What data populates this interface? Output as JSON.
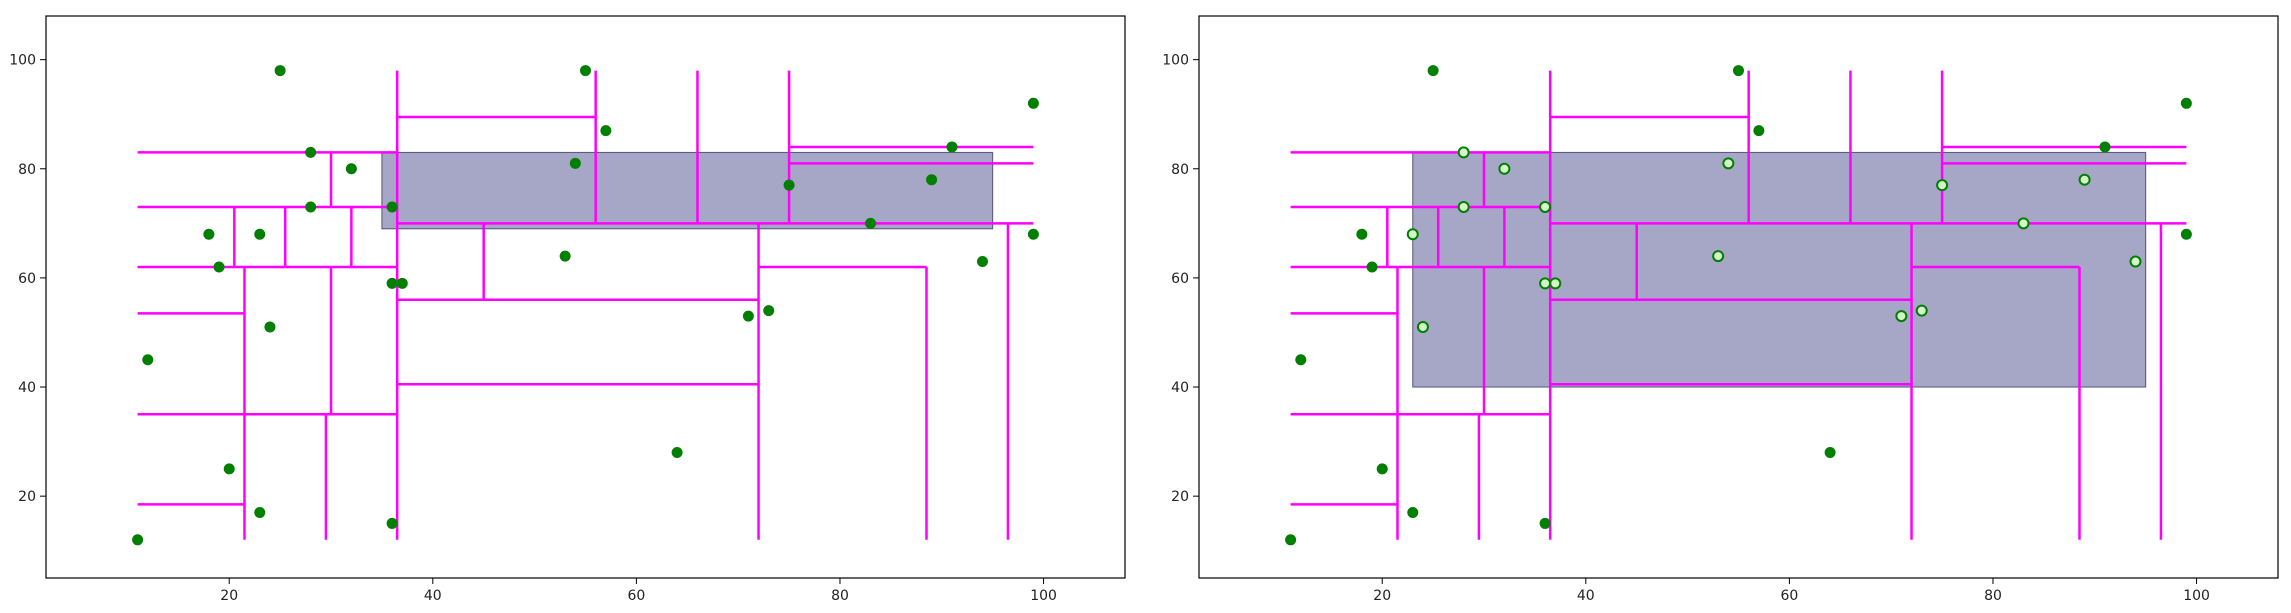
{
  "chart_data": [
    {
      "type": "scatter",
      "title": "",
      "xlabel": "",
      "ylabel": "",
      "xlim": [
        2,
        108
      ],
      "ylim": [
        5,
        108
      ],
      "xticks": [
        20,
        40,
        60,
        80,
        100
      ],
      "yticks": [
        20,
        40,
        60,
        80,
        100
      ],
      "grid": false,
      "points": [
        [
          11,
          12
        ],
        [
          12,
          45
        ],
        [
          18,
          68
        ],
        [
          19,
          62
        ],
        [
          20,
          25
        ],
        [
          23,
          17
        ],
        [
          23,
          68
        ],
        [
          24,
          51
        ],
        [
          25,
          98
        ],
        [
          28,
          83
        ],
        [
          28,
          73
        ],
        [
          32,
          80
        ],
        [
          36,
          73
        ],
        [
          36,
          59
        ],
        [
          37,
          59
        ],
        [
          36,
          15
        ],
        [
          53,
          64
        ],
        [
          54,
          81
        ],
        [
          55,
          98
        ],
        [
          57,
          87
        ],
        [
          64,
          28
        ],
        [
          71,
          53
        ],
        [
          73,
          54
        ],
        [
          75,
          77
        ],
        [
          83,
          70
        ],
        [
          89,
          78
        ],
        [
          91,
          84
        ],
        [
          94,
          63
        ],
        [
          99,
          92
        ],
        [
          99,
          68
        ]
      ],
      "highlighted": [],
      "query_rect": {
        "x": [
          35,
          95
        ],
        "y": [
          69,
          83
        ]
      },
      "partitions": [
        {
          "orient": "v",
          "at": 36.5,
          "from": 12,
          "to": 98
        },
        {
          "orient": "v",
          "at": 21.5,
          "from": 12,
          "to": 62
        },
        {
          "orient": "v",
          "at": 29.5,
          "from": 12,
          "to": 35
        },
        {
          "orient": "v",
          "at": 30,
          "from": 35,
          "to": 62
        },
        {
          "orient": "v",
          "at": 20.5,
          "from": 62,
          "to": 73
        },
        {
          "orient": "v",
          "at": 25.5,
          "from": 62,
          "to": 73
        },
        {
          "orient": "v",
          "at": 32,
          "from": 62,
          "to": 73
        },
        {
          "orient": "v",
          "at": 30,
          "from": 73,
          "to": 83
        },
        {
          "orient": "v",
          "at": 72,
          "from": 12,
          "to": 70
        },
        {
          "orient": "v",
          "at": 45,
          "from": 56,
          "to": 70
        },
        {
          "orient": "v",
          "at": 56,
          "from": 70,
          "to": 98
        },
        {
          "orient": "v",
          "at": 66,
          "from": 70,
          "to": 98
        },
        {
          "orient": "v",
          "at": 75,
          "from": 70,
          "to": 98
        },
        {
          "orient": "v",
          "at": 88.5,
          "from": 12,
          "to": 62
        },
        {
          "orient": "v",
          "at": 96.5,
          "from": 12,
          "to": 70
        },
        {
          "orient": "h",
          "at": 18.5,
          "from": 11,
          "to": 21.5
        },
        {
          "orient": "h",
          "at": 35,
          "from": 11,
          "to": 36.5
        },
        {
          "orient": "h",
          "at": 53.5,
          "from": 11,
          "to": 21.5
        },
        {
          "orient": "h",
          "at": 62,
          "from": 11,
          "to": 36.5
        },
        {
          "orient": "h",
          "at": 73,
          "from": 11,
          "to": 36.5
        },
        {
          "orient": "h",
          "at": 83,
          "from": 11,
          "to": 36.5
        },
        {
          "orient": "h",
          "at": 40.5,
          "from": 36.5,
          "to": 72
        },
        {
          "orient": "h",
          "at": 56,
          "from": 36.5,
          "to": 72
        },
        {
          "orient": "h",
          "at": 70,
          "from": 36.5,
          "to": 99
        },
        {
          "orient": "h",
          "at": 89.5,
          "from": 36.5,
          "to": 56
        },
        {
          "orient": "h",
          "at": 62,
          "from": 72,
          "to": 88.5
        },
        {
          "orient": "h",
          "at": 81,
          "from": 75,
          "to": 99
        },
        {
          "orient": "h",
          "at": 84,
          "from": 75,
          "to": 99
        }
      ]
    },
    {
      "type": "scatter",
      "title": "",
      "xlabel": "",
      "ylabel": "",
      "xlim": [
        2,
        108
      ],
      "ylim": [
        5,
        108
      ],
      "xticks": [
        20,
        40,
        60,
        80,
        100
      ],
      "yticks": [
        20,
        40,
        60,
        80,
        100
      ],
      "grid": false,
      "points": [
        [
          11,
          12
        ],
        [
          12,
          45
        ],
        [
          18,
          68
        ],
        [
          19,
          62
        ],
        [
          20,
          25
        ],
        [
          23,
          17
        ],
        [
          23,
          68
        ],
        [
          24,
          51
        ],
        [
          25,
          98
        ],
        [
          28,
          83
        ],
        [
          28,
          73
        ],
        [
          32,
          80
        ],
        [
          36,
          73
        ],
        [
          36,
          59
        ],
        [
          37,
          59
        ],
        [
          36,
          15
        ],
        [
          53,
          64
        ],
        [
          54,
          81
        ],
        [
          55,
          98
        ],
        [
          57,
          87
        ],
        [
          64,
          28
        ],
        [
          71,
          53
        ],
        [
          73,
          54
        ],
        [
          75,
          77
        ],
        [
          83,
          70
        ],
        [
          89,
          78
        ],
        [
          91,
          84
        ],
        [
          94,
          63
        ],
        [
          99,
          92
        ],
        [
          99,
          68
        ]
      ],
      "highlighted": [
        [
          23,
          68
        ],
        [
          24,
          51
        ],
        [
          28,
          83
        ],
        [
          28,
          73
        ],
        [
          32,
          80
        ],
        [
          36,
          73
        ],
        [
          36,
          59
        ],
        [
          37,
          59
        ],
        [
          53,
          64
        ],
        [
          54,
          81
        ],
        [
          71,
          53
        ],
        [
          73,
          54
        ],
        [
          75,
          77
        ],
        [
          83,
          70
        ],
        [
          89,
          78
        ],
        [
          94,
          63
        ]
      ],
      "query_rect": {
        "x": [
          23,
          95
        ],
        "y": [
          40,
          83
        ]
      },
      "partitions": [
        {
          "orient": "v",
          "at": 36.5,
          "from": 12,
          "to": 98
        },
        {
          "orient": "v",
          "at": 21.5,
          "from": 12,
          "to": 62
        },
        {
          "orient": "v",
          "at": 29.5,
          "from": 12,
          "to": 35
        },
        {
          "orient": "v",
          "at": 30,
          "from": 35,
          "to": 62
        },
        {
          "orient": "v",
          "at": 20.5,
          "from": 62,
          "to": 73
        },
        {
          "orient": "v",
          "at": 25.5,
          "from": 62,
          "to": 73
        },
        {
          "orient": "v",
          "at": 32,
          "from": 62,
          "to": 73
        },
        {
          "orient": "v",
          "at": 30,
          "from": 73,
          "to": 83
        },
        {
          "orient": "v",
          "at": 72,
          "from": 12,
          "to": 70
        },
        {
          "orient": "v",
          "at": 45,
          "from": 56,
          "to": 70
        },
        {
          "orient": "v",
          "at": 56,
          "from": 70,
          "to": 98
        },
        {
          "orient": "v",
          "at": 66,
          "from": 70,
          "to": 98
        },
        {
          "orient": "v",
          "at": 75,
          "from": 70,
          "to": 98
        },
        {
          "orient": "v",
          "at": 88.5,
          "from": 12,
          "to": 62
        },
        {
          "orient": "v",
          "at": 96.5,
          "from": 12,
          "to": 70
        },
        {
          "orient": "h",
          "at": 18.5,
          "from": 11,
          "to": 21.5
        },
        {
          "orient": "h",
          "at": 35,
          "from": 11,
          "to": 36.5
        },
        {
          "orient": "h",
          "at": 53.5,
          "from": 11,
          "to": 21.5
        },
        {
          "orient": "h",
          "at": 62,
          "from": 11,
          "to": 36.5
        },
        {
          "orient": "h",
          "at": 73,
          "from": 11,
          "to": 36.5
        },
        {
          "orient": "h",
          "at": 83,
          "from": 11,
          "to": 36.5
        },
        {
          "orient": "h",
          "at": 40.5,
          "from": 36.5,
          "to": 72
        },
        {
          "orient": "h",
          "at": 56,
          "from": 36.5,
          "to": 72
        },
        {
          "orient": "h",
          "at": 70,
          "from": 36.5,
          "to": 99
        },
        {
          "orient": "h",
          "at": 89.5,
          "from": 36.5,
          "to": 56
        },
        {
          "orient": "h",
          "at": 62,
          "from": 72,
          "to": 88.5
        },
        {
          "orient": "h",
          "at": 81,
          "from": 75,
          "to": 99
        },
        {
          "orient": "h",
          "at": 84,
          "from": 75,
          "to": 99
        }
      ]
    }
  ],
  "colors": {
    "point": "#007f00",
    "highlight_fill": "#d4f5c8",
    "partition": "#ff00ff",
    "query_rect_fill": "#8888b3",
    "query_rect_stroke": "#55557a",
    "axes": "#000000"
  }
}
